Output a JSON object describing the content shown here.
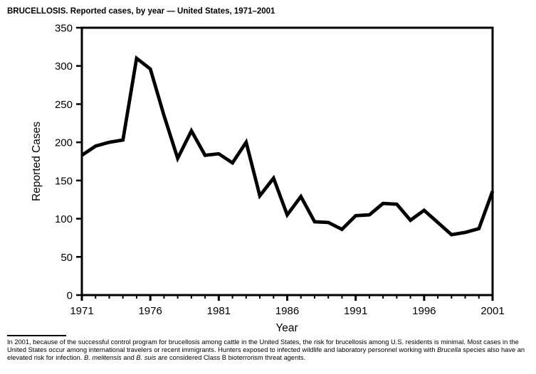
{
  "title": "BRUCELLOSIS. Reported cases, by year — United States, 1971–2001",
  "chart_data": {
    "type": "line",
    "title": "BRUCELLOSIS. Reported cases, by year — United States, 1971–2001",
    "xlabel": "Year",
    "ylabel": "Reported Cases",
    "xlim": [
      1971,
      2001
    ],
    "ylim": [
      0,
      350
    ],
    "y_ticks": [
      0,
      50,
      100,
      150,
      200,
      250,
      300,
      350
    ],
    "x_major_ticks": [
      1971,
      1976,
      1981,
      1986,
      1991,
      1996,
      2001
    ],
    "x_minor_tick_interval": 1,
    "grid": false,
    "legend_position": "none",
    "line_color": "#000000",
    "x": [
      1971,
      1972,
      1973,
      1974,
      1975,
      1976,
      1977,
      1978,
      1979,
      1980,
      1981,
      1982,
      1983,
      1984,
      1985,
      1986,
      1987,
      1988,
      1989,
      1990,
      1991,
      1992,
      1993,
      1994,
      1995,
      1996,
      1997,
      1998,
      1999,
      2000,
      2001
    ],
    "values": [
      183,
      195,
      200,
      203,
      310,
      296,
      235,
      179,
      215,
      183,
      185,
      173,
      200,
      130,
      153,
      105,
      129,
      96,
      95,
      86,
      104,
      105,
      120,
      119,
      98,
      111,
      95,
      79,
      82,
      87,
      136
    ]
  },
  "footnote": {
    "segments": [
      {
        "text": "In 2001, because of the successful control program for brucellosis among cattle in the United States, the risk for brucellosis among U.S. residents is minimal. Most cases in the United States occur among international travelers or recent immigrants. Hunters exposed to infected wildlife and laboratory personnel working with ",
        "italic": false
      },
      {
        "text": "Brucella",
        "italic": true
      },
      {
        "text": " species also have an elevated risk for infection. ",
        "italic": false
      },
      {
        "text": "B. melitensis",
        "italic": true
      },
      {
        "text": " and ",
        "italic": false
      },
      {
        "text": "B. suis",
        "italic": true
      },
      {
        "text": " are considered Class B bioterrorism threat agents.",
        "italic": false
      }
    ]
  }
}
